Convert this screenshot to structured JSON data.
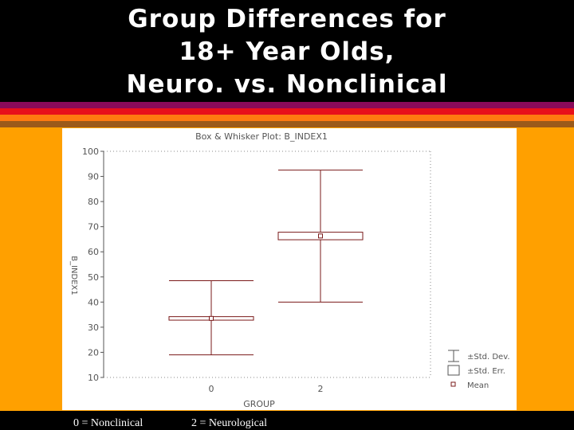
{
  "slide": {
    "title_lines": [
      "Group Differences for",
      "18+ Year Olds,",
      "Neuro. vs. Nonclinical"
    ],
    "footer_left": "0 = Nonclinical",
    "footer_right": "2 = Neurological"
  },
  "colors": {
    "background": "#000000",
    "title_text": "#ffffff",
    "band_purple": "#8a0a5a",
    "band_red": "#e8101b",
    "band_orange": "#ff7a10",
    "band_brown": "#9b5a1a",
    "body_orange": "#ffa000",
    "chart_line": "#7a1a1a"
  },
  "chart_data": {
    "type": "box",
    "title": "Box & Whisker Plot: B_INDEX1",
    "xlabel": "GROUP",
    "ylabel": "B_INDEX1",
    "ylim": [
      10,
      100
    ],
    "yticks": [
      10,
      20,
      30,
      40,
      50,
      60,
      70,
      80,
      90,
      100
    ],
    "categories": [
      "0",
      "2"
    ],
    "boxes": [
      {
        "category": "0",
        "mean": 33.5,
        "se_low": 32.8,
        "se_high": 34.2,
        "sd_low": 19,
        "sd_high": 48.5
      },
      {
        "category": "2",
        "mean": 66.3,
        "se_low": 64.8,
        "se_high": 67.8,
        "sd_low": 40,
        "sd_high": 92.5
      }
    ],
    "legend": {
      "placement": "bottom-right",
      "entries": [
        "±Std. Dev.",
        "±Std. Err.",
        "Mean"
      ]
    },
    "grid": false
  }
}
